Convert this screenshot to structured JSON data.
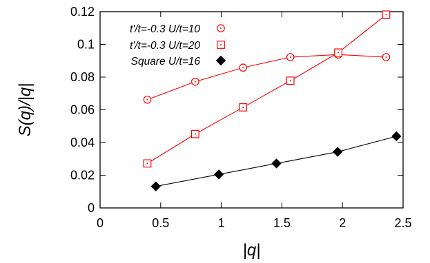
{
  "chart_data": {
    "type": "line",
    "xlabel": "|q|",
    "ylabel": "S(q)/|q|",
    "xlim": [
      0,
      2.5
    ],
    "ylim": [
      0,
      0.12
    ],
    "xticks": [
      "0",
      "0.5",
      "1",
      "1.5",
      "2",
      "2.5"
    ],
    "yticks": [
      "0",
      "0.02",
      "0.04",
      "0.06",
      "0.08",
      "0.1",
      "0.12"
    ],
    "grid": false,
    "legend_position": "top-left",
    "series": [
      {
        "name": "t'/t=-0.3 U/t=10",
        "marker": "circle-dot",
        "color": "#ff0000",
        "x": [
          0.39,
          0.785,
          1.18,
          1.57,
          1.965,
          2.36
        ],
        "y": [
          0.0662,
          0.0772,
          0.0858,
          0.0922,
          0.0938,
          0.0922
        ]
      },
      {
        "name": "t'/t=-0.3 U/t=20",
        "marker": "square-dot",
        "color": "#ff0000",
        "x": [
          0.39,
          0.785,
          1.18,
          1.57,
          1.965,
          2.36
        ],
        "y": [
          0.0272,
          0.0452,
          0.0615,
          0.0778,
          0.095,
          0.1182
        ]
      },
      {
        "name": "Square U/t=16",
        "marker": "diamond-filled",
        "color": "#000000",
        "x": [
          0.46,
          0.98,
          1.455,
          1.96,
          2.445
        ],
        "y": [
          0.0132,
          0.0205,
          0.0272,
          0.0343,
          0.0438
        ]
      }
    ]
  }
}
